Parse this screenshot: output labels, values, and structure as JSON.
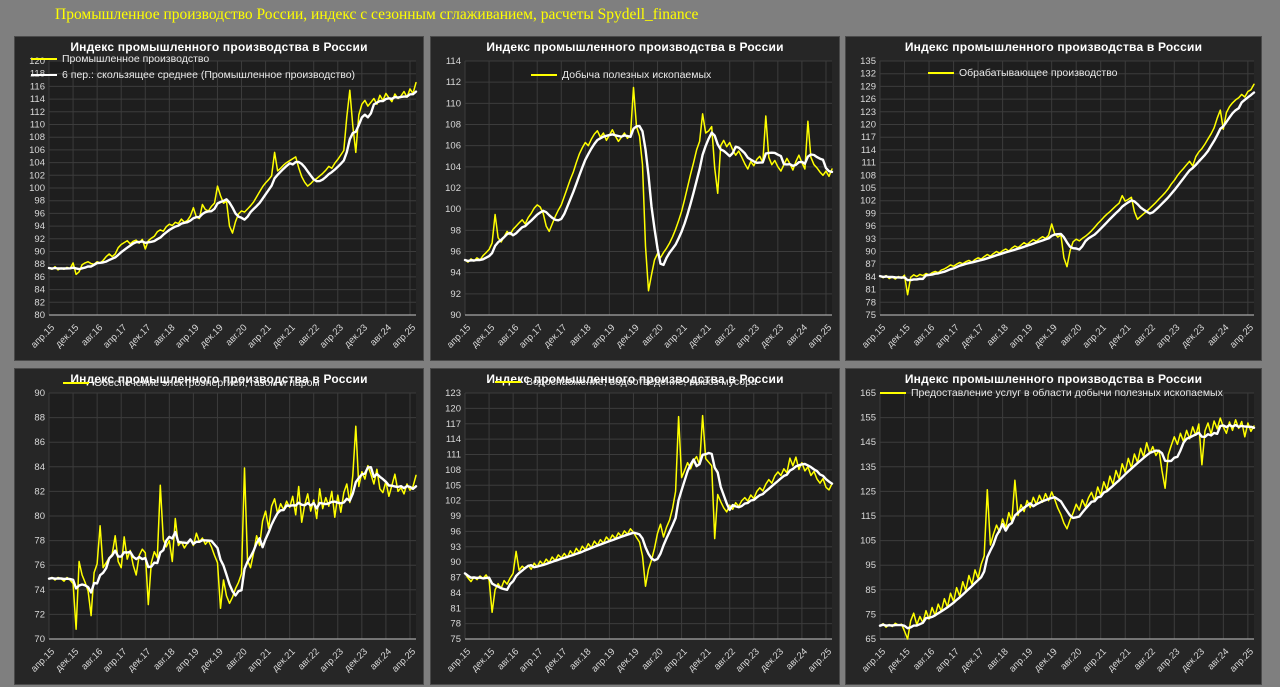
{
  "header": {
    "title": "Промышленное производство России, индекс с сезонным сглаживанием, расчеты Spydell_finance"
  },
  "colors": {
    "background": "#7f7f7f",
    "panel": "#262626",
    "plot": "#1e1e1e",
    "grid": "#3c3c3c",
    "axis_line": "#a6a6a6",
    "axis_text": "#d9d9d9",
    "panel_title": "#ffffff",
    "header_text": "#ffff00",
    "series": "#ffff00",
    "moving_average": "#ffffff"
  },
  "x_tick_labels": [
    "апр.15",
    "дек.15",
    "авг.16",
    "апр.17",
    "дек.17",
    "авг.18",
    "апр.19",
    "дек.19",
    "авг.20",
    "апр.21",
    "дек.21",
    "авг.22",
    "апр.23",
    "дек.23",
    "авг.24",
    "апр.25"
  ],
  "chart_data": [
    {
      "type": "line",
      "title": "Индекс промышленного производства в России",
      "xlabel": "",
      "ylabel": "",
      "grid": true,
      "y_min": 80,
      "y_max": 120,
      "y_step": 2,
      "ma_window": 6,
      "legend_position": "top-left-inside",
      "legend_pos": {
        "x": 16,
        "y": 16
      },
      "legend": [
        {
          "label": "Промышленное производство",
          "color": "#ffff00"
        },
        {
          "label": "6 пер.: скользящее среднее (Промышленное производство)",
          "color": "#ffffff"
        }
      ],
      "values": [
        87.4,
        87.2,
        87.6,
        87.1,
        87.4,
        87.2,
        87.5,
        87.3,
        88.2,
        86.4,
        86.8,
        87.9,
        88.2,
        88.4,
        88.1,
        88.0,
        88.4,
        88.2,
        88.6,
        89.2,
        89.6,
        89.2,
        89.6,
        90.6,
        91.1,
        91.4,
        91.7,
        91.2,
        91.6,
        91.8,
        91.3,
        91.9,
        90.4,
        91.7,
        92.1,
        92.4,
        93.1,
        93.4,
        93.2,
        93.9,
        94.3,
        94.1,
        94.6,
        94.4,
        95.1,
        94.6,
        94.9,
        95.6,
        96.9,
        95.4,
        95.2,
        97.4,
        96.6,
        96.4,
        97.1,
        97.6,
        100.3,
        98.8,
        97.6,
        97.9,
        94.0,
        92.9,
        94.7,
        95.9,
        96.4,
        96.2,
        96.7,
        97.2,
        97.8,
        98.6,
        99.4,
        100.2,
        100.8,
        101.3,
        101.9,
        105.6,
        102.7,
        103.1,
        103.6,
        104.0,
        104.3,
        104.6,
        104.9,
        103.2,
        101.8,
        100.9,
        100.3,
        100.7,
        101.2,
        101.5,
        101.9,
        102.3,
        102.8,
        103.4,
        103.1,
        103.9,
        104.5,
        105.2,
        105.9,
        111.2,
        115.4,
        109.8,
        105.6,
        111.5,
        113.2,
        113.8,
        112.9,
        113.5,
        114.1,
        113.2,
        114.6,
        113.8,
        114.9,
        114.2,
        113.6,
        114.8,
        114.1,
        114.5,
        115.2,
        114.3,
        115.6,
        114.9,
        116.6
      ]
    },
    {
      "type": "line",
      "title": "Индекс промышленного производства в России",
      "xlabel": "",
      "ylabel": "",
      "grid": true,
      "y_min": 90,
      "y_max": 114,
      "y_step": 2,
      "ma_window": 6,
      "legend_position": "top-center-inside",
      "legend_pos": {
        "x": 100,
        "y": 32
      },
      "legend": [
        {
          "label": "Добыча полезных ископаемых",
          "color": "#ffff00"
        }
      ],
      "values": [
        95.2,
        95.0,
        95.3,
        95.1,
        95.4,
        95.2,
        95.6,
        95.9,
        96.2,
        96.8,
        99.5,
        97.3,
        96.9,
        97.4,
        97.9,
        97.6,
        98.1,
        98.4,
        98.7,
        99.0,
        98.6,
        99.2,
        99.6,
        100.1,
        100.4,
        100.2,
        99.6,
        98.4,
        97.9,
        98.6,
        99.3,
        99.9,
        100.4,
        101.2,
        102.0,
        102.8,
        103.5,
        104.4,
        105.2,
        105.8,
        106.3,
        106.0,
        106.6,
        107.1,
        107.4,
        106.8,
        107.2,
        106.5,
        107.0,
        107.5,
        106.9,
        106.4,
        106.8,
        107.2,
        106.7,
        107.0,
        111.5,
        107.8,
        106.9,
        104.2,
        96.5,
        92.3,
        93.8,
        95.2,
        95.8,
        95.4,
        95.9,
        96.3,
        96.8,
        97.4,
        98.1,
        98.9,
        99.8,
        100.9,
        102.1,
        103.3,
        104.4,
        105.6,
        106.4,
        109.0,
        107.2,
        107.4,
        107.8,
        103.9,
        101.5,
        106.0,
        106.5,
        105.9,
        106.3,
        105.6,
        105.1,
        105.5,
        104.9,
        104.3,
        103.8,
        104.5,
        104.1,
        104.7,
        105.0,
        104.4,
        108.8,
        104.9,
        104.2,
        104.6,
        104.0,
        103.6,
        104.2,
        104.8,
        104.3,
        103.7,
        104.5,
        105.1,
        104.4,
        103.8,
        108.3,
        104.9,
        104.2,
        103.9,
        103.5,
        103.2,
        103.6,
        103.1,
        103.8
      ]
    },
    {
      "type": "line",
      "title": "Индекс промышленного производства в России",
      "xlabel": "",
      "ylabel": "",
      "grid": true,
      "y_min": 75,
      "y_max": 135,
      "y_step": 3,
      "ma_window": 6,
      "legend_position": "top-center-inside",
      "legend_pos": {
        "x": 82,
        "y": 30
      },
      "legend": [
        {
          "label": "Обрабатывающее производство",
          "color": "#ffff00"
        }
      ],
      "values": [
        84.2,
        83.8,
        84.3,
        83.6,
        84.0,
        83.5,
        84.1,
        83.7,
        84.4,
        79.8,
        83.9,
        84.5,
        84.1,
        84.6,
        84.3,
        84.8,
        84.5,
        85.0,
        85.3,
        85.0,
        85.6,
        85.9,
        86.3,
        86.8,
        86.5,
        87.0,
        87.4,
        87.1,
        87.6,
        87.9,
        87.5,
        88.1,
        88.5,
        88.2,
        88.8,
        89.3,
        88.9,
        89.5,
        90.0,
        89.6,
        90.2,
        90.6,
        90.1,
        90.8,
        91.3,
        90.9,
        91.5,
        92.1,
        91.6,
        92.3,
        92.8,
        92.4,
        93.0,
        93.5,
        93.1,
        93.8,
        96.5,
        94.2,
        93.4,
        93.9,
        88.5,
        86.4,
        90.2,
        92.3,
        92.9,
        92.5,
        93.1,
        93.6,
        94.2,
        94.9,
        95.7,
        96.6,
        97.3,
        98.1,
        98.8,
        99.4,
        100.1,
        100.8,
        101.4,
        103.2,
        101.9,
        102.3,
        102.8,
        99.4,
        97.6,
        98.3,
        98.9,
        99.5,
        100.2,
        100.9,
        101.6,
        102.4,
        103.1,
        103.9,
        104.8,
        105.9,
        106.8,
        107.9,
        108.8,
        109.6,
        110.5,
        111.3,
        110.2,
        112.4,
        113.5,
        114.3,
        115.4,
        116.6,
        117.8,
        119.2,
        121.5,
        123.4,
        118.9,
        122.8,
        124.2,
        125.1,
        125.8,
        126.3,
        127.1,
        126.5,
        127.8,
        128.2,
        129.5
      ]
    },
    {
      "type": "line",
      "title": "Индекс промышленного производства в России",
      "xlabel": "",
      "ylabel": "",
      "grid": true,
      "y_min": 70,
      "y_max": 90,
      "y_step": 2,
      "ma_window": 6,
      "legend_position": "top-left-inside",
      "legend_pos": {
        "x": 48,
        "y": 8
      },
      "legend": [
        {
          "label": "Обеспечение электроэнергией, газом и паром",
          "color": "#ffff00"
        }
      ],
      "values": [
        74.9,
        75.0,
        74.8,
        75.0,
        74.9,
        74.7,
        75.0,
        74.8,
        74.5,
        70.8,
        76.3,
        75.2,
        74.6,
        73.9,
        71.9,
        75.4,
        76.1,
        79.2,
        75.8,
        76.2,
        76.6,
        76.9,
        78.4,
        76.3,
        75.8,
        78.3,
        76.5,
        77.2,
        76.0,
        75.2,
        76.8,
        77.3,
        77.0,
        72.8,
        76.2,
        77.1,
        76.6,
        82.5,
        78.1,
        77.5,
        78.0,
        76.3,
        79.8,
        77.6,
        77.9,
        77.4,
        77.8,
        78.1,
        77.6,
        78.6,
        77.9,
        78.2,
        77.7,
        78.0,
        77.5,
        76.8,
        76.2,
        72.5,
        74.8,
        73.5,
        72.9,
        73.4,
        74.1,
        74.6,
        75.3,
        83.9,
        76.4,
        75.8,
        77.0,
        78.4,
        77.6,
        79.6,
        80.4,
        79.0,
        80.8,
        81.4,
        80.2,
        81.0,
        80.5,
        81.2,
        80.7,
        81.6,
        80.1,
        82.4,
        79.5,
        80.9,
        81.8,
        80.4,
        81.3,
        79.8,
        82.2,
        80.6,
        81.5,
        80.8,
        82.0,
        79.9,
        81.7,
        80.3,
        81.9,
        82.6,
        81.1,
        83.3,
        87.3,
        82.4,
        83.6,
        83.0,
        84.1,
        83.4,
        82.6,
        83.8,
        82.2,
        81.9,
        82.8,
        81.6,
        82.5,
        83.4,
        82.0,
        82.3,
        81.8,
        82.6,
        82.1,
        82.4,
        83.3
      ]
    },
    {
      "type": "line",
      "title": "Индекс промышленного производства в России",
      "xlabel": "",
      "ylabel": "",
      "grid": true,
      "y_min": 75,
      "y_max": 123,
      "y_step": 3,
      "ma_window": 6,
      "legend_position": "top-center-inside",
      "legend_pos": {
        "x": 64,
        "y": 7
      },
      "legend": [
        {
          "label": "Водоснабжение, водоотведение, вывоз мусора",
          "color": "#ffff00"
        }
      ],
      "values": [
        87.8,
        86.9,
        86.2,
        87.1,
        86.6,
        87.3,
        86.8,
        87.5,
        86.5,
        80.2,
        84.6,
        85.8,
        84.9,
        86.4,
        85.7,
        86.9,
        87.8,
        92.1,
        88.4,
        89.2,
        88.7,
        89.4,
        88.6,
        89.8,
        89.1,
        90.2,
        89.5,
        90.6,
        89.9,
        91.0,
        90.3,
        91.4,
        90.8,
        91.7,
        90.9,
        92.2,
        91.4,
        92.7,
        91.9,
        93.1,
        92.4,
        93.6,
        92.8,
        94.1,
        93.3,
        94.4,
        93.7,
        94.9,
        94.2,
        95.3,
        94.6,
        95.7,
        95.0,
        96.1,
        95.4,
        96.5,
        95.8,
        94.8,
        93.9,
        91.2,
        85.3,
        88.6,
        90.4,
        92.7,
        95.6,
        97.4,
        94.9,
        96.8,
        98.2,
        100.5,
        103.8,
        118.4,
        106.5,
        107.9,
        109.4,
        108.2,
        109.8,
        110.6,
        109.0,
        118.6,
        110.2,
        109.5,
        108.8,
        94.6,
        103.2,
        101.8,
        100.6,
        99.8,
        101.1,
        100.3,
        101.6,
        100.9,
        102.0,
        102.6,
        101.9,
        103.1,
        102.4,
        103.8,
        104.5,
        103.9,
        105.2,
        106.1,
        105.4,
        106.8,
        107.6,
        106.9,
        108.2,
        107.4,
        110.3,
        108.8,
        110.5,
        108.1,
        109.4,
        107.8,
        108.6,
        106.9,
        107.7,
        106.2,
        105.4,
        106.3,
        104.6,
        104.1,
        105.3
      ]
    },
    {
      "type": "line",
      "title": "Индекс промышленного производства в России",
      "xlabel": "",
      "ylabel": "",
      "grid": true,
      "y_min": 65,
      "y_max": 165,
      "y_step": 10,
      "ma_window": 6,
      "legend_position": "top-left-inside",
      "legend_pos": {
        "x": 34,
        "y": 18
      },
      "legend": [
        {
          "label": "Предоставление услуг в области добычи полезных ископаемых",
          "color": "#ffff00"
        }
      ],
      "values": [
        70.4,
        71.2,
        69.8,
        70.9,
        70.1,
        71.4,
        70.6,
        71.0,
        68.2,
        65.0,
        72.4,
        75.5,
        70.8,
        74.2,
        71.6,
        76.5,
        73.1,
        77.8,
        74.5,
        79.2,
        76.3,
        81.4,
        77.9,
        83.6,
        80.2,
        85.9,
        82.4,
        88.3,
        84.7,
        90.8,
        87.2,
        93.1,
        89.6,
        95.4,
        98.8,
        125.7,
        103.2,
        107.6,
        111.3,
        108.4,
        113.8,
        110.2,
        116.4,
        112.9,
        129.5,
        115.2,
        119.6,
        116.8,
        121.3,
        118.4,
        122.6,
        119.8,
        123.4,
        120.6,
        124.1,
        121.2,
        124.8,
        121.8,
        118.2,
        115.6,
        112.1,
        109.8,
        113.4,
        116.2,
        119.8,
        117.4,
        121.6,
        118.8,
        122.4,
        124.6,
        121.2,
        126.8,
        123.4,
        128.9,
        125.6,
        131.2,
        127.8,
        133.5,
        130.1,
        136.2,
        132.8,
        138.4,
        134.6,
        140.2,
        136.8,
        142.5,
        139.1,
        144.8,
        140.4,
        143.2,
        139.6,
        141.8,
        133.4,
        126.3,
        139.8,
        143.6,
        147.2,
        144.1,
        148.6,
        145.3,
        149.8,
        146.4,
        151.2,
        147.8,
        152.4,
        135.8,
        149.6,
        152.8,
        148.2,
        153.6,
        150.4,
        154.8,
        151.2,
        148.6,
        153.2,
        149.8,
        154.1,
        150.6,
        153.4,
        147.2,
        152.8,
        149.4,
        151.6
      ]
    }
  ]
}
